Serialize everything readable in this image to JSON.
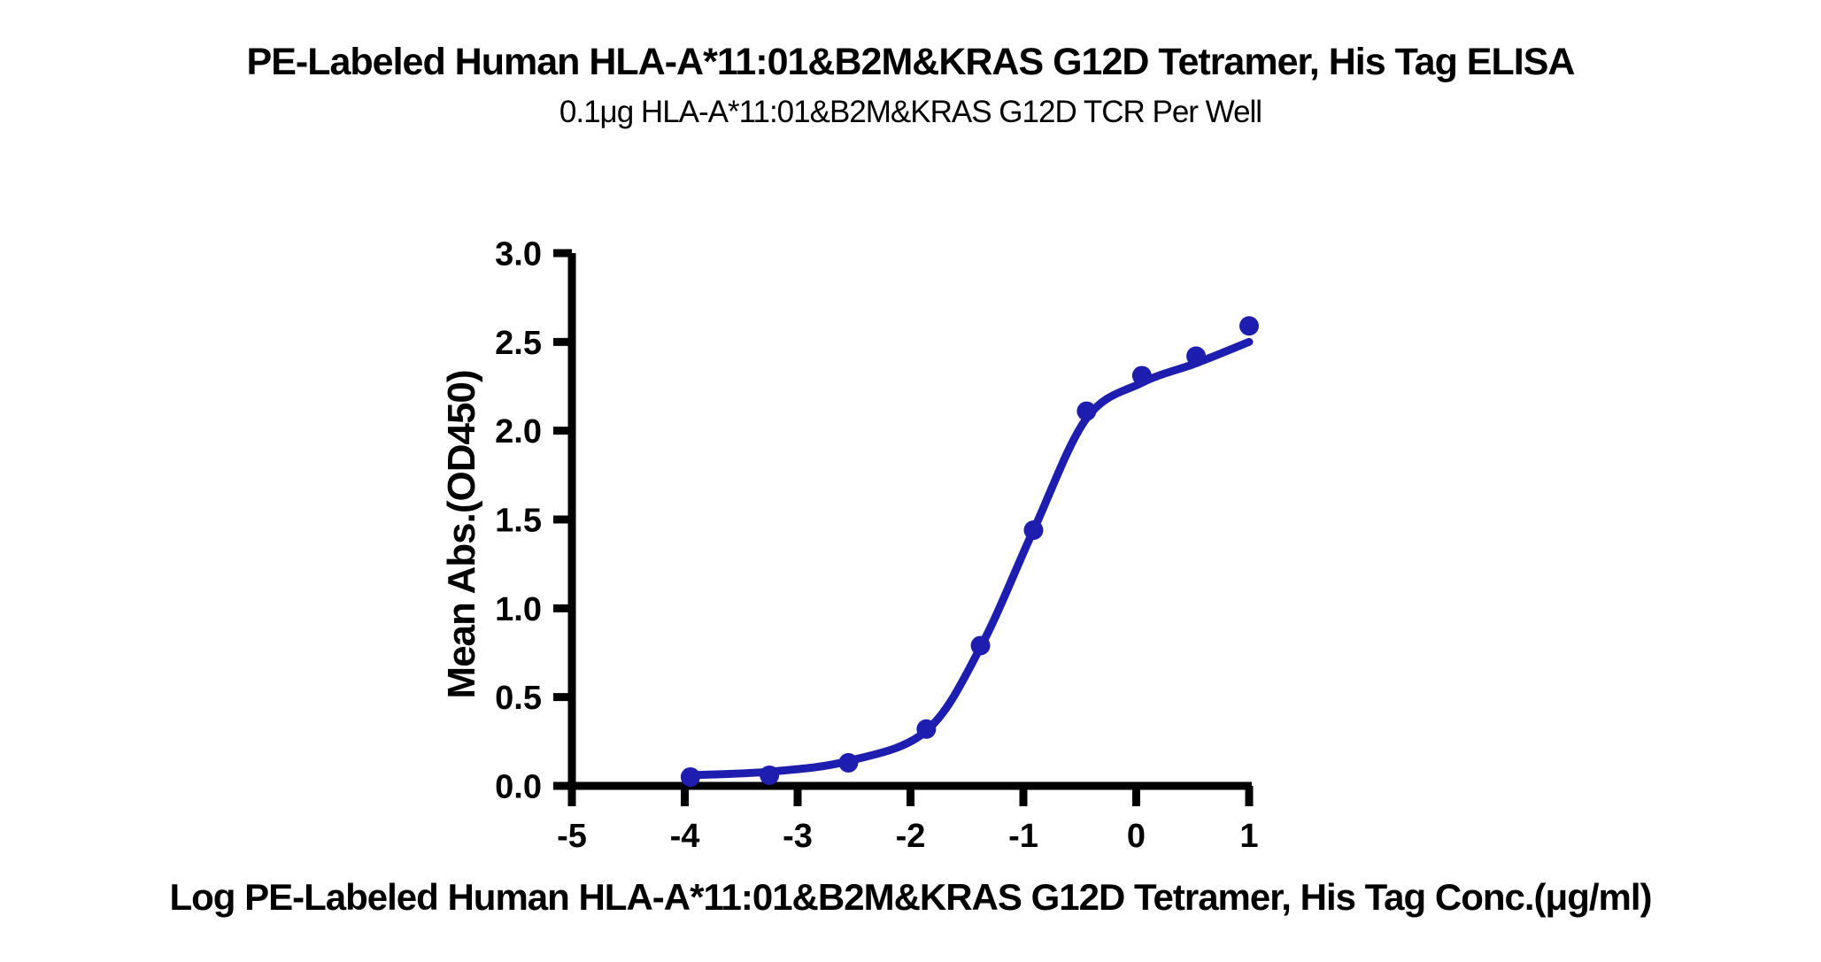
{
  "chart_data": {
    "type": "scatter",
    "title": "PE-Labeled Human HLA-A*11:01&B2M&KRAS G12D Tetramer, His Tag ELISA",
    "subtitle": "0.1μg HLA-A*11:01&B2M&KRAS G12D TCR Per Well",
    "xlabel": "Log PE-Labeled Human HLA-A*11:01&B2M&KRAS G12D Tetramer, His Tag Conc.(μg/ml)",
    "ylabel": "Mean Abs.(OD450)",
    "xlim": [
      -5,
      1
    ],
    "ylim": [
      0,
      3
    ],
    "x_ticks": [
      -5,
      -4,
      -3,
      -2,
      -1,
      0,
      1
    ],
    "x_tick_labels": [
      "-5",
      "-4",
      "-3",
      "-2",
      "-1",
      "0",
      "1"
    ],
    "y_ticks": [
      0,
      0.5,
      1,
      1.5,
      2,
      2.5,
      3
    ],
    "y_tick_labels": [
      "0.0",
      "0.5",
      "1.0",
      "1.5",
      "2.0",
      "2.5",
      "3.0"
    ],
    "grid": false,
    "legend": "none",
    "axis_color": "#000000",
    "background": "#ffffff",
    "series": [
      {
        "marker": "circle",
        "color": "#1d1db0",
        "points": [
          {
            "x": -3.95,
            "y": 0.05
          },
          {
            "x": -3.25,
            "y": 0.06
          },
          {
            "x": -2.55,
            "y": 0.13
          },
          {
            "x": -1.86,
            "y": 0.32
          },
          {
            "x": -1.38,
            "y": 0.79
          },
          {
            "x": -0.91,
            "y": 1.44
          },
          {
            "x": -0.44,
            "y": 2.11
          },
          {
            "x": 0.05,
            "y": 2.31
          },
          {
            "x": 0.53,
            "y": 2.42
          },
          {
            "x": 1.0,
            "y": 2.59
          }
        ],
        "fit_curve": [
          [
            -3.95,
            0.06
          ],
          [
            -3.25,
            0.08
          ],
          [
            -2.55,
            0.14
          ],
          [
            -1.86,
            0.31
          ],
          [
            -1.38,
            0.78
          ],
          [
            -0.91,
            1.44
          ],
          [
            -0.44,
            2.07
          ],
          [
            0.05,
            2.27
          ],
          [
            0.53,
            2.38
          ],
          [
            1.0,
            2.5
          ]
        ]
      }
    ]
  }
}
